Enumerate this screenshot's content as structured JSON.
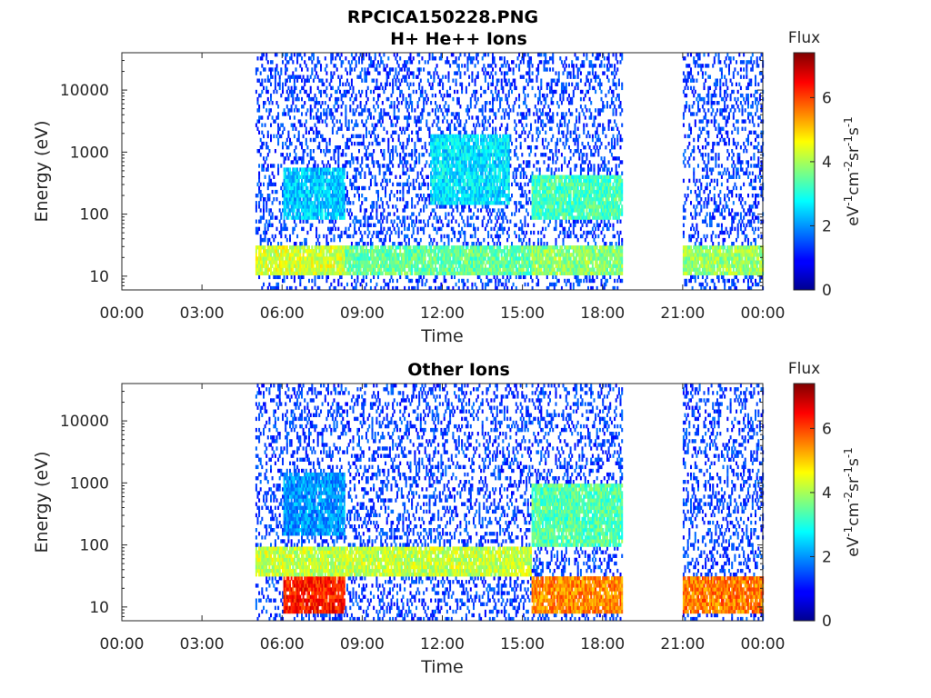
{
  "figure_title": "RPCICA150228.PNG",
  "chart_data": [
    {
      "type": "heatmap",
      "title": "H+ He++ Ions",
      "xlabel": "Time",
      "ylabel": "Energy (eV)",
      "x_ticks": [
        "00:00",
        "03:00",
        "06:00",
        "09:00",
        "12:00",
        "15:00",
        "18:00",
        "21:00",
        "00:00"
      ],
      "x_range_hours": [
        0,
        24
      ],
      "y_scale": "log",
      "y_range": [
        6,
        40000
      ],
      "y_ticks": [
        10,
        100,
        1000,
        10000
      ],
      "y_tick_labels": [
        "10",
        "100",
        "1000",
        "10000"
      ],
      "colorbar": {
        "label": "Flux",
        "units": "eV-1cm-2sr-1s-1",
        "range": [
          0,
          7.4
        ],
        "ticks": [
          0,
          2,
          4,
          6
        ],
        "colormap": "jet"
      },
      "data_intervals_hours": [
        [
          5.0,
          18.7
        ],
        [
          21.0,
          24.0
        ]
      ],
      "features": [
        {
          "t": [
            5.0,
            8.3
          ],
          "e": [
            10,
            30
          ],
          "flux": 4.3
        },
        {
          "t": [
            6.0,
            8.3
          ],
          "e": [
            80,
            600
          ],
          "flux": 2.4
        },
        {
          "t": [
            8.3,
            15.3
          ],
          "e": [
            10,
            30
          ],
          "flux": 3.5
        },
        {
          "t": [
            11.5,
            14.5
          ],
          "e": [
            150,
            2000
          ],
          "flux": 2.6
        },
        {
          "t": [
            15.3,
            18.7
          ],
          "e": [
            80,
            400
          ],
          "flux": 3.3
        },
        {
          "t": [
            15.3,
            18.7
          ],
          "e": [
            10,
            30
          ],
          "flux": 3.8
        },
        {
          "t": [
            21.0,
            24.0
          ],
          "e": [
            10,
            30
          ],
          "flux": 3.9
        }
      ]
    },
    {
      "type": "heatmap",
      "title": "Other Ions",
      "xlabel": "Time",
      "ylabel": "Energy (eV)",
      "x_ticks": [
        "00:00",
        "03:00",
        "06:00",
        "09:00",
        "12:00",
        "15:00",
        "18:00",
        "21:00",
        "00:00"
      ],
      "x_range_hours": [
        0,
        24
      ],
      "y_scale": "log",
      "y_range": [
        6,
        40000
      ],
      "y_ticks": [
        10,
        100,
        1000,
        10000
      ],
      "y_tick_labels": [
        "10",
        "100",
        "1000",
        "10000"
      ],
      "colorbar": {
        "label": "Flux",
        "units": "eV-1cm-2sr-1s-1",
        "range": [
          0,
          7.4
        ],
        "ticks": [
          0,
          2,
          4,
          6
        ],
        "colormap": "jet"
      },
      "data_intervals_hours": [
        [
          5.0,
          18.7
        ],
        [
          21.0,
          24.0
        ]
      ],
      "features": [
        {
          "t": [
            6.0,
            8.3
          ],
          "e": [
            8,
            30
          ],
          "flux": 6.3
        },
        {
          "t": [
            5.0,
            15.3
          ],
          "e": [
            30,
            90
          ],
          "flux": 4.2
        },
        {
          "t": [
            6.0,
            8.3
          ],
          "e": [
            150,
            1500
          ],
          "flux": 2.0
        },
        {
          "t": [
            15.3,
            18.7
          ],
          "e": [
            8,
            30
          ],
          "flux": 5.5
        },
        {
          "t": [
            15.3,
            18.7
          ],
          "e": [
            100,
            1000
          ],
          "flux": 3.4
        },
        {
          "t": [
            21.0,
            24.0
          ],
          "e": [
            8,
            30
          ],
          "flux": 5.6
        }
      ]
    }
  ]
}
